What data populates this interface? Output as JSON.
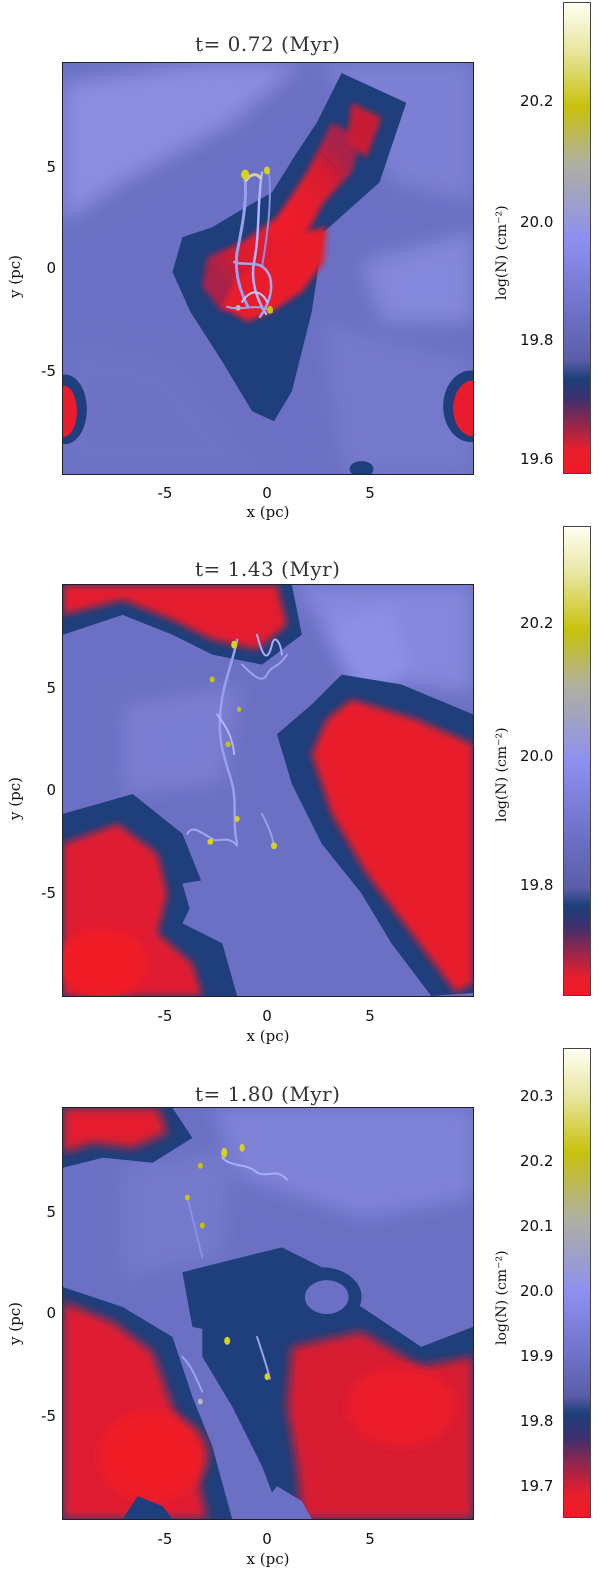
{
  "chart_data": [
    {
      "type": "heatmap",
      "title": "t= 0.72 (Myr)",
      "xlabel": "x (pc)",
      "ylabel": "y (pc)",
      "xlim": [
        -9.7,
        9.7
      ],
      "ylim": [
        -9.7,
        9.7
      ],
      "xticks": [
        "-5",
        "0",
        "5"
      ],
      "yticks": [
        "5",
        "0",
        "-5"
      ],
      "colorbar_label": "log(N) (cm⁻²)",
      "colorbar_ticks": [
        "20.2",
        "20.0",
        "19.8",
        "19.6"
      ],
      "colorbar_range": [
        19.57,
        20.35
      ]
    },
    {
      "type": "heatmap",
      "title": "t= 1.43 (Myr)",
      "xlabel": "x (pc)",
      "ylabel": "y (pc)",
      "xlim": [
        -9.7,
        9.7
      ],
      "ylim": [
        -9.7,
        9.7
      ],
      "xticks": [
        "-5",
        "0",
        "5"
      ],
      "yticks": [
        "5",
        "0",
        "-5"
      ],
      "colorbar_label": "log(N) (cm⁻²)",
      "colorbar_ticks": [
        "20.2",
        "20.0",
        "19.8"
      ],
      "colorbar_range": [
        19.65,
        20.35
      ]
    },
    {
      "type": "heatmap",
      "title": "t= 1.80 (Myr)",
      "xlabel": "x (pc)",
      "ylabel": "y (pc)",
      "xlim": [
        -9.7,
        9.7
      ],
      "ylim": [
        -9.7,
        9.7
      ],
      "xticks": [
        "-5",
        "0",
        "5"
      ],
      "yticks": [
        "5",
        "0",
        "-5"
      ],
      "colorbar_label": "log(N) (cm⁻²)",
      "colorbar_ticks": [
        "20.3",
        "20.2",
        "20.1",
        "20.0",
        "19.9",
        "19.8",
        "19.7"
      ],
      "colorbar_range": [
        19.66,
        20.36
      ]
    }
  ],
  "colors": {
    "red": "#ee1c2c",
    "dark_blue": "#1d3f7a",
    "slate_blue": "#6a6fc2",
    "light_blue": "#8c8fe0",
    "yellow": "#c8c20c",
    "cream": "#fffff0"
  }
}
